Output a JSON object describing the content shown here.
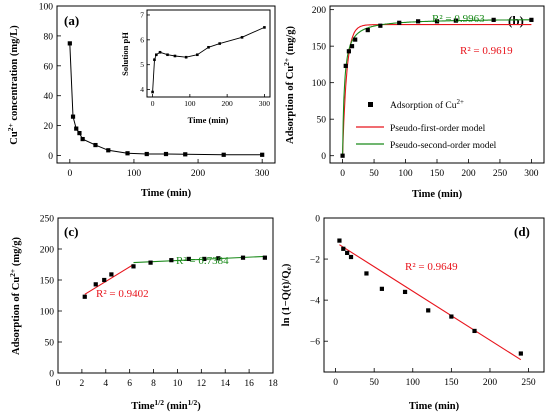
{
  "colors": {
    "red": "#e8141c",
    "green": "#1a8a1a",
    "black": "#000000"
  },
  "chart_data": [
    {
      "type": "line",
      "panel": "(a)",
      "xlabel": "Time (min)",
      "ylabel": "Cu2+ concentration (mg/L)",
      "ylabel_parts": {
        "pre": "Cu",
        "sup": "2+",
        "post": " concentration (mg/L)"
      },
      "xlim": [
        -20,
        320
      ],
      "ylim": [
        -5,
        100
      ],
      "xticks": [
        0,
        100,
        200,
        300
      ],
      "yticks": [
        0,
        20,
        40,
        60,
        80,
        100
      ],
      "series": [
        {
          "x": [
            0,
            5,
            10,
            15,
            20,
            40,
            60,
            90,
            120,
            150,
            180,
            240,
            300
          ],
          "y": [
            75,
            26,
            18,
            15,
            11,
            7,
            3.5,
            1.5,
            1,
            1,
            0.8,
            0.5,
            0.5
          ]
        }
      ],
      "inset": {
        "type": "line",
        "xlabel": "Time (min)",
        "ylabel": "Solution pH",
        "xlim": [
          -15,
          315
        ],
        "ylim": [
          3.7,
          7.2
        ],
        "xticks": [
          0,
          100,
          200,
          300
        ],
        "yticks": [
          4,
          5,
          6,
          7
        ],
        "series": [
          {
            "x": [
              0,
              5,
              10,
              20,
              40,
              60,
              90,
              120,
              150,
              180,
              240,
              300
            ],
            "y": [
              3.9,
              5.2,
              5.4,
              5.5,
              5.4,
              5.35,
              5.3,
              5.4,
              5.7,
              5.85,
              6.1,
              6.5
            ]
          }
        ]
      }
    },
    {
      "type": "scatter",
      "panel": "(b)",
      "xlabel": "Time (min)",
      "ylabel": "Adsorption of Cu2+ (mg/g)",
      "ylabel_parts": {
        "pre": "Adsorption of Cu",
        "sup": "2+",
        "post": " (mg/g)"
      },
      "xlim": [
        -20,
        320
      ],
      "ylim": [
        -10,
        205
      ],
      "xticks": [
        0,
        50,
        100,
        150,
        200,
        250,
        300
      ],
      "yticks": [
        0,
        50,
        100,
        150,
        200
      ],
      "series": [
        {
          "name": "Adsorption of Cu2+",
          "legend_parts": {
            "pre": "Adsorption of Cu",
            "sup": "2+"
          },
          "x": [
            0,
            5,
            10,
            15,
            20,
            40,
            60,
            90,
            120,
            150,
            180,
            240,
            300
          ],
          "y": [
            0,
            123,
            143,
            150,
            159,
            172,
            178,
            182,
            184,
            184,
            185,
            186,
            186
          ]
        },
        {
          "name": "Pseudo-first-order model",
          "qe": 179.5,
          "k": 0.15
        },
        {
          "name": "Pseudo-second-order model",
          "qe": 188,
          "k": 0.0018
        }
      ],
      "annotations": [
        {
          "text": "R² = 0.9963",
          "color": "green"
        },
        {
          "text": "R² = 0.9619",
          "color": "red"
        }
      ]
    },
    {
      "type": "scatter",
      "panel": "(c)",
      "xlabel": "Time1/2 (min1/2)",
      "xlabel_parts": {
        "a": "Time",
        "asup": "1/2",
        "b": " (min",
        "bsup": "1/2",
        "c": ")"
      },
      "ylabel": "Adsorption of Cu2+ (mg/g)",
      "ylabel_parts": {
        "pre": "Adsorption of Cu",
        "sup": "2+",
        "post": " (mg/g)"
      },
      "xlim": [
        0,
        18
      ],
      "ylim": [
        0,
        250
      ],
      "xticks": [
        0,
        2,
        4,
        6,
        8,
        10,
        12,
        14,
        16,
        18
      ],
      "yticks": [
        0,
        50,
        100,
        150,
        200,
        250
      ],
      "series": [
        {
          "x": [
            2.24,
            3.16,
            3.87,
            4.47,
            6.32,
            7.75,
            9.49,
            10.95,
            12.25,
            13.42,
            15.49,
            17.32
          ],
          "y": [
            123,
            143,
            150,
            159,
            172,
            178,
            182,
            184,
            184,
            185,
            186,
            186
          ]
        }
      ],
      "fits": [
        {
          "x": [
            2.24,
            6.32
          ],
          "y": [
            127,
            175
          ],
          "color": "red"
        },
        {
          "x": [
            6.32,
            17.32
          ],
          "y": [
            178,
            188
          ],
          "color": "green"
        }
      ],
      "annotations": [
        {
          "text": "R² = 0.7384",
          "color": "green"
        },
        {
          "text": "R² = 0.9402",
          "color": "red"
        }
      ]
    },
    {
      "type": "scatter",
      "panel": "(d)",
      "xlabel": "Time (min)",
      "ylabel": "ln (1−Q(t)/Qe)",
      "ylabel_parts": {
        "pre": "ln (1−Q(t)/Q",
        "sub": "e",
        "post": ")"
      },
      "xlim": [
        -15,
        270
      ],
      "ylim": [
        -7.5,
        0
      ],
      "xticks": [
        0,
        50,
        100,
        150,
        200,
        250
      ],
      "yticks": [
        -6,
        -4,
        -2,
        0
      ],
      "series": [
        {
          "x": [
            5,
            10,
            15,
            20,
            40,
            60,
            90,
            120,
            150,
            180,
            240
          ],
          "y": [
            -1.1,
            -1.5,
            -1.7,
            -1.9,
            -2.7,
            -3.45,
            -3.6,
            -4.5,
            -4.8,
            -5.5,
            -6.6
          ]
        }
      ],
      "fits": [
        {
          "x": [
            5,
            240
          ],
          "y": [
            -1.3,
            -6.9
          ],
          "color": "red"
        }
      ],
      "annotations": [
        {
          "text": "R² = 0.9649",
          "color": "red"
        }
      ]
    }
  ]
}
